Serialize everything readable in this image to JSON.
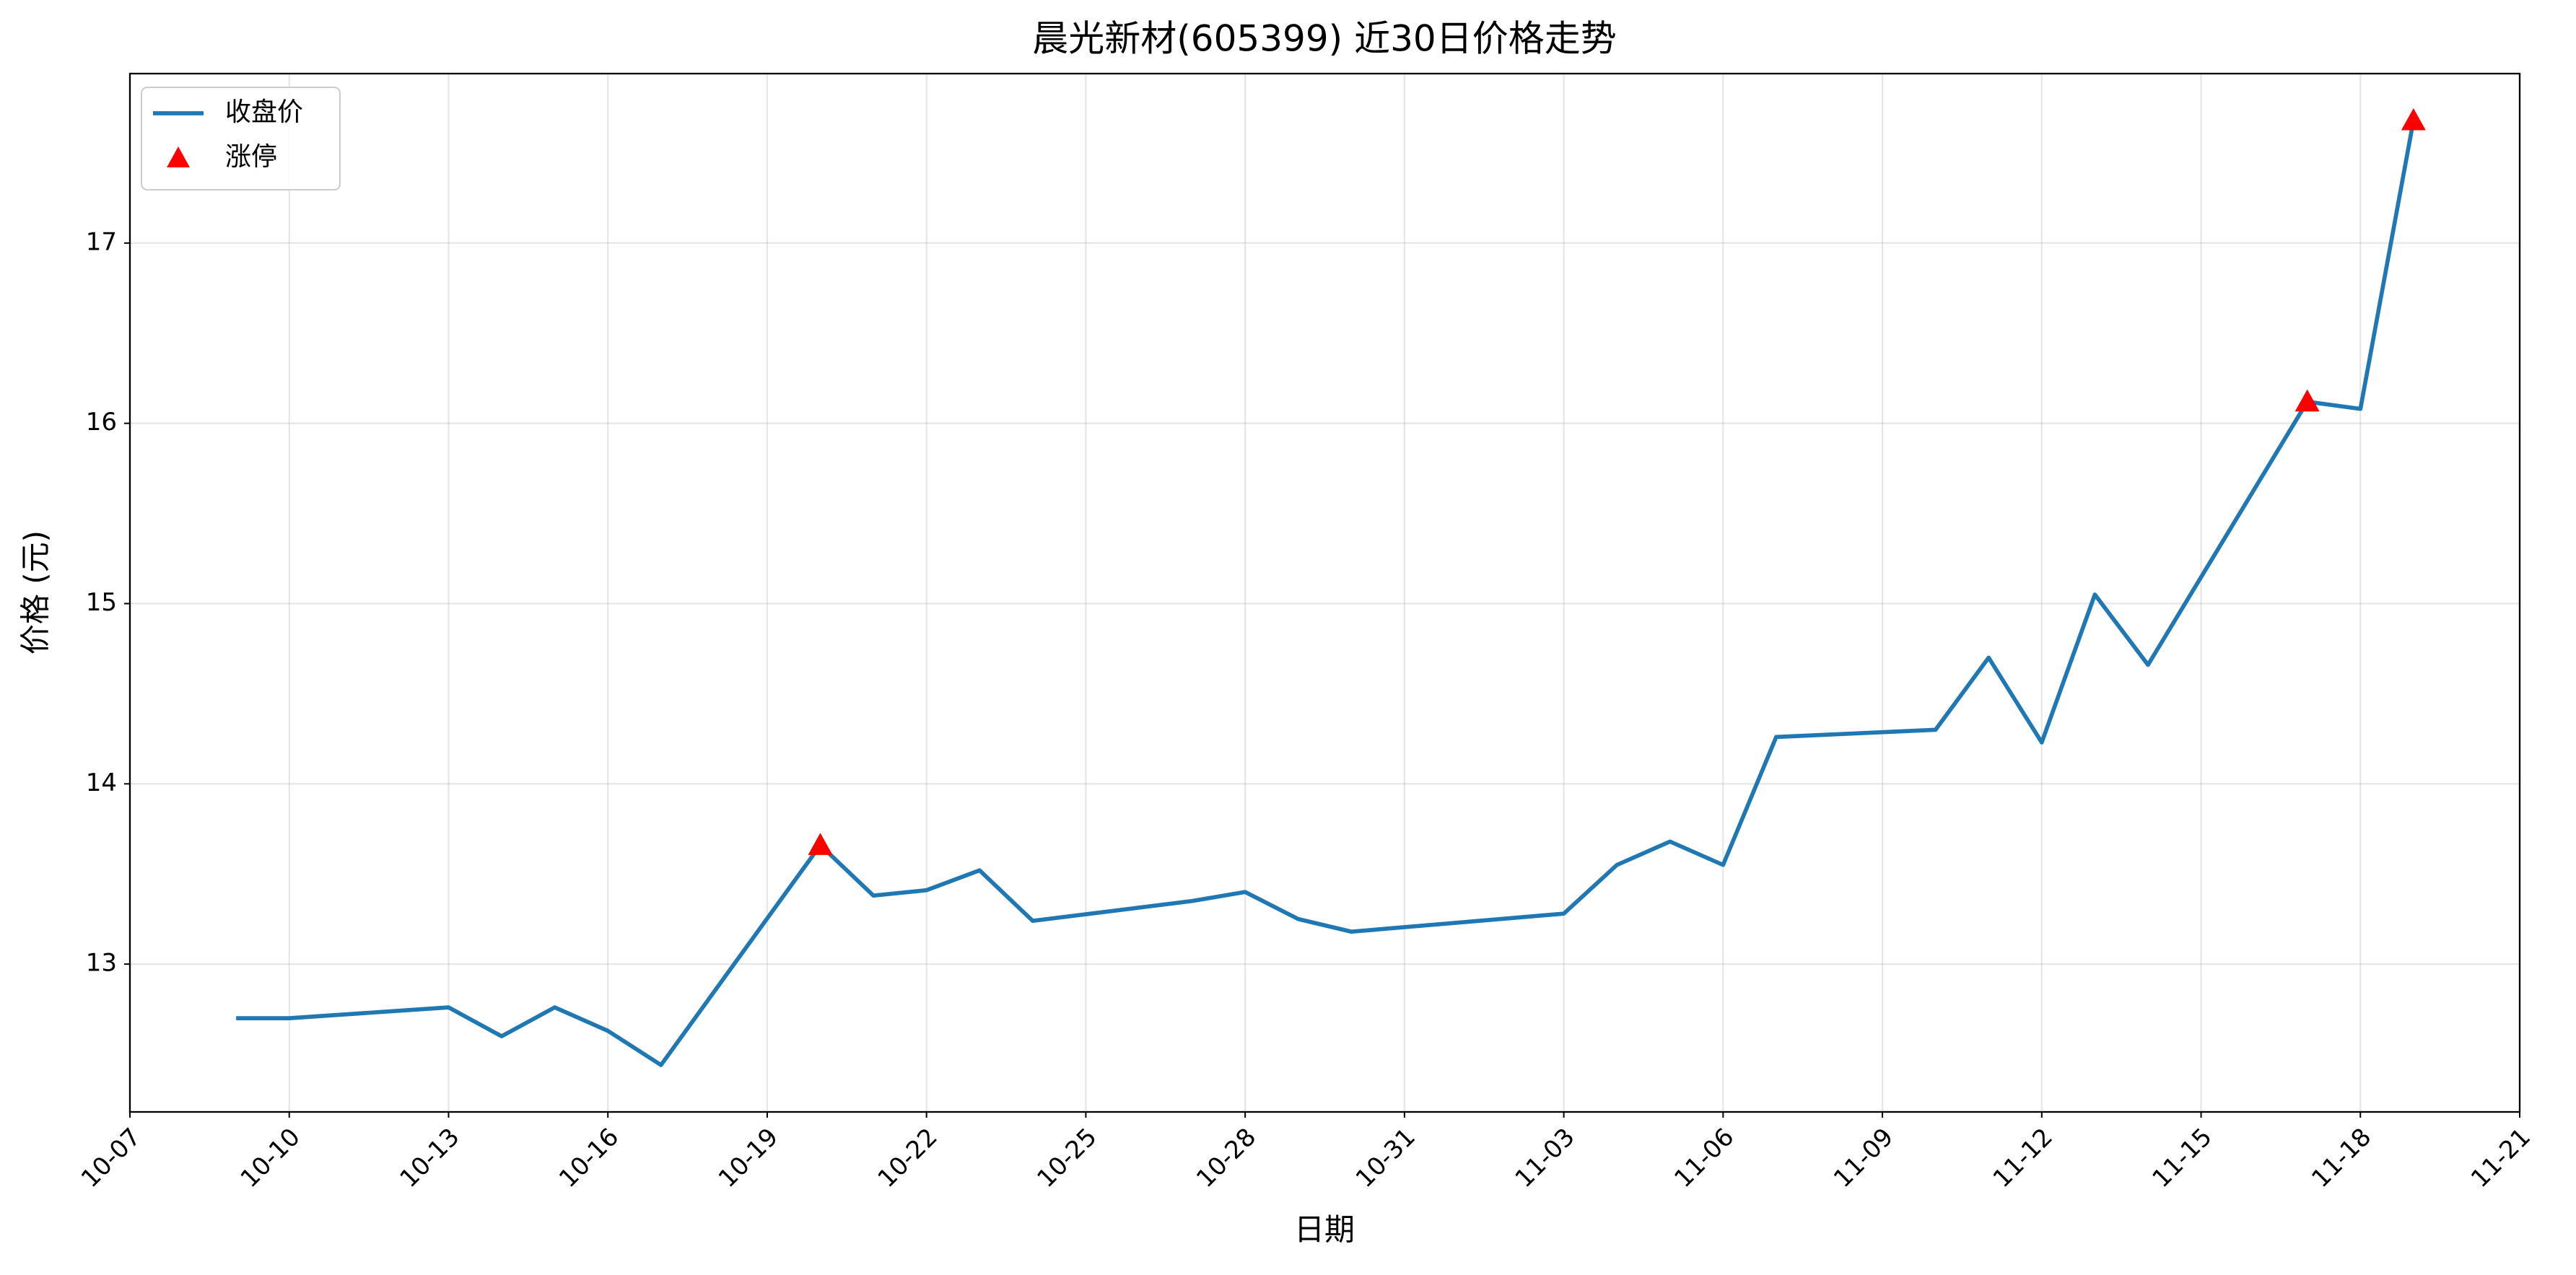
{
  "chart_data": {
    "type": "line",
    "title": "晨光新材(605399) 近30日价格走势",
    "x_label": "日期",
    "y_label": "价格 (元)",
    "xlim": [
      "10-07",
      "11-21"
    ],
    "xticks": [
      "10-07",
      "10-10",
      "10-13",
      "10-16",
      "10-19",
      "10-22",
      "10-25",
      "10-28",
      "10-31",
      "11-03",
      "11-06",
      "11-09",
      "11-12",
      "11-15",
      "11-18",
      "11-21"
    ],
    "ylim": [
      12.18,
      17.94
    ],
    "yticks": [
      13,
      14,
      15,
      16,
      17
    ],
    "grid": true,
    "legend": "upper left",
    "series": [
      {
        "name": "收盘价",
        "type": "line",
        "color": "#1f77b4",
        "x": [
          "10-09",
          "10-10",
          "10-13",
          "10-14",
          "10-15",
          "10-16",
          "10-17",
          "10-20",
          "10-21",
          "10-22",
          "10-23",
          "10-24",
          "10-27",
          "10-28",
          "10-29",
          "10-30",
          "11-03",
          "11-04",
          "11-05",
          "11-06",
          "11-07",
          "11-10",
          "11-11",
          "11-12",
          "11-13",
          "11-14",
          "11-17",
          "11-18",
          "11-19"
        ],
        "values": [
          12.7,
          12.7,
          12.76,
          12.6,
          12.76,
          12.63,
          12.44,
          13.66,
          13.38,
          13.41,
          13.52,
          13.24,
          13.35,
          13.4,
          13.25,
          13.18,
          13.28,
          13.55,
          13.68,
          13.55,
          14.26,
          14.3,
          14.7,
          14.23,
          15.05,
          14.66,
          16.12,
          16.08,
          17.68
        ]
      },
      {
        "name": "涨停",
        "type": "scatter",
        "color": "#ff0000",
        "x": [
          "10-20",
          "11-17",
          "11-19"
        ],
        "values": [
          13.66,
          16.12,
          17.68
        ]
      }
    ]
  }
}
